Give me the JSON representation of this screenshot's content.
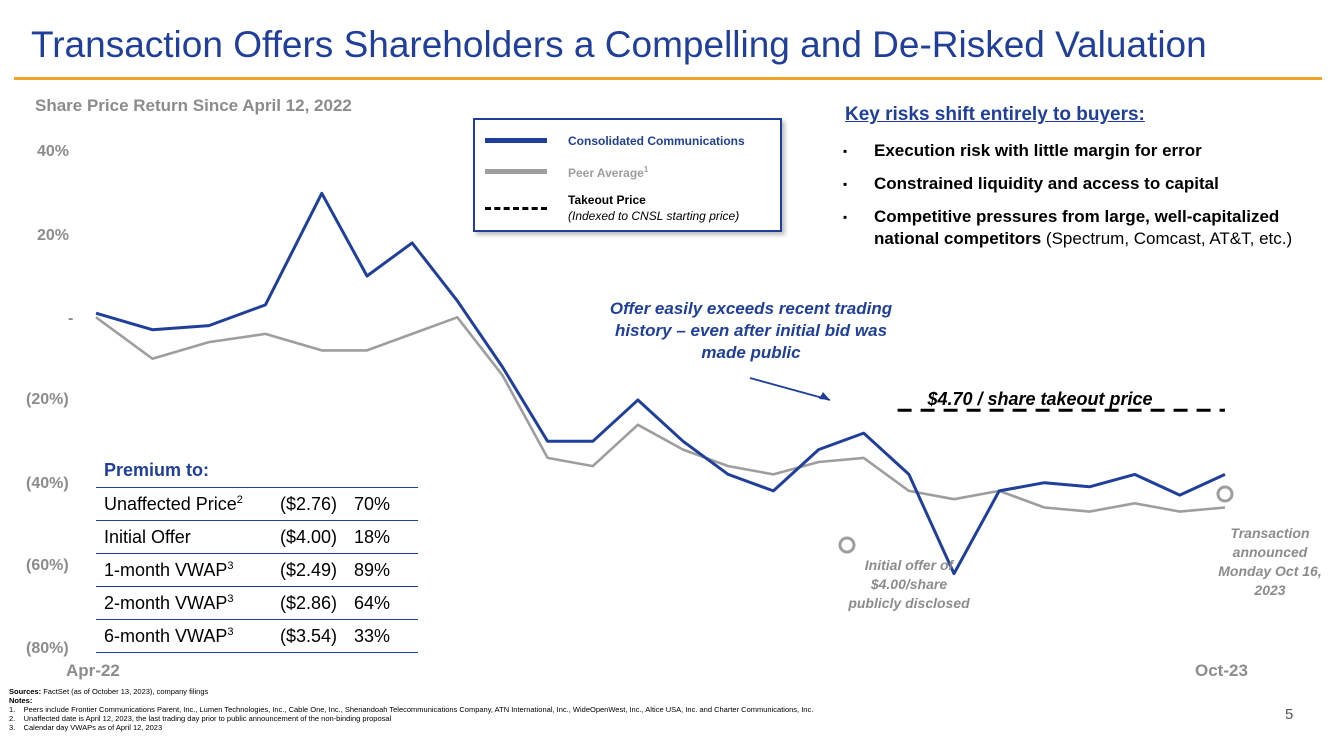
{
  "title": "Transaction Offers Shareholders a Compelling and De-Risked Valuation",
  "colors": {
    "title": "#1f3f9a",
    "accent_rule": "#f0a426",
    "cnsl": "#1f3f9a",
    "peer": "#9e9e9e",
    "takeout": "#000000",
    "muted": "#8c8c8c"
  },
  "chart_data": {
    "type": "line",
    "title": "Share Price Return Since April 12, 2022",
    "ylim": [
      -80,
      40
    ],
    "y_ticks": [
      {
        "value": 40,
        "label": "40%"
      },
      {
        "value": 20,
        "label": "20%"
      },
      {
        "value": 0,
        "label": "-"
      },
      {
        "value": -20,
        "label": "(20%)"
      },
      {
        "value": -40,
        "label": "(40%)"
      },
      {
        "value": -60,
        "label": "(60%)"
      },
      {
        "value": -80,
        "label": "(80%)"
      }
    ],
    "x_range": [
      "Apr-22",
      "Oct-23"
    ],
    "x_ticks": [
      "Apr-22",
      "Oct-23"
    ],
    "x": [
      0,
      0.05,
      0.1,
      0.15,
      0.2,
      0.24,
      0.28,
      0.32,
      0.36,
      0.4,
      0.44,
      0.48,
      0.52,
      0.56,
      0.6,
      0.64,
      0.68,
      0.72,
      0.76,
      0.8,
      0.84,
      0.88,
      0.92,
      0.96,
      1.0
    ],
    "series": [
      {
        "name": "Consolidated Communications",
        "color": "#1f3f9a",
        "values": [
          1,
          -3,
          -2,
          3,
          30,
          10,
          18,
          4,
          -12,
          -30,
          -30,
          -20,
          -30,
          -38,
          -42,
          -32,
          -28,
          -38,
          -62,
          -42,
          -40,
          -41,
          -38,
          -43,
          -38
        ]
      },
      {
        "name": "Peer Average",
        "color": "#9e9e9e",
        "values": [
          0,
          -10,
          -6,
          -4,
          -8,
          -8,
          -4,
          0,
          -14,
          -34,
          -36,
          -26,
          -32,
          -36,
          -38,
          -35,
          -34,
          -42,
          -44,
          -42,
          -46,
          -47,
          -45,
          -47,
          -46
        ]
      },
      {
        "name": "Takeout Price",
        "color": "#000000",
        "style": "dashed",
        "x": [
          0.71,
          1.0
        ],
        "values": [
          -22.5,
          -22.5
        ]
      }
    ],
    "legend": [
      {
        "label": "Consolidated Communications",
        "sup": ""
      },
      {
        "label": "Peer Average",
        "sup": "1"
      },
      {
        "label": "Takeout Price",
        "sub": "(Indexed to CNSL starting price)"
      }
    ],
    "annotations": {
      "offer_note": "Offer easily exceeds recent trading history – even after initial bid was made public",
      "takeout_label": "$4.70 / share takeout price",
      "initial_offer": "Initial offer of $4.00/share publicly disclosed",
      "transaction": "Transaction announced Monday Oct 16, 2023"
    }
  },
  "risks": {
    "title": "Key risks shift entirely to buyers:",
    "bullet": "▪",
    "items": [
      {
        "bold": "Execution risk with little margin for error",
        "normal": ""
      },
      {
        "bold": "Constrained liquidity and access to capital",
        "normal": ""
      },
      {
        "bold": "Competitive pressures from large, well-capitalized national competitors",
        "normal": " (Spectrum, Comcast, AT&T, etc.)"
      }
    ]
  },
  "premium": {
    "title": "Premium to:",
    "rows": [
      {
        "label": "Unaffected Price",
        "sup": "2",
        "price": "($2.76)",
        "pct": "70%"
      },
      {
        "label": "Initial Offer",
        "sup": "",
        "price": "($4.00)",
        "pct": "18%"
      },
      {
        "label": "1-month VWAP",
        "sup": "3",
        "price": "($2.49)",
        "pct": "89%"
      },
      {
        "label": "2-month VWAP",
        "sup": "3",
        "price": "($2.86)",
        "pct": "64%"
      },
      {
        "label": "6-month VWAP",
        "sup": "3",
        "price": "($3.54)",
        "pct": "33%"
      }
    ]
  },
  "footer": {
    "sources_label": "Sources:",
    "sources_text": " FactSet (as of October 13, 2023), company filings",
    "notes_label": "Notes:",
    "notes": [
      "1.    Peers include Frontier Communications Parent, Inc., Lumen Technologies, Inc., Cable One, Inc., Shenandoah Telecommunications Company, ATN International, Inc., WideOpenWest, Inc., Altice USA, Inc. and Charter Communications, Inc.",
      "2.    Unaffected date is April 12, 2023, the last trading day prior to public announcement of the non-binding proposal",
      "3.    Calendar day VWAPs as of April 12, 2023"
    ],
    "page_number": "5"
  }
}
